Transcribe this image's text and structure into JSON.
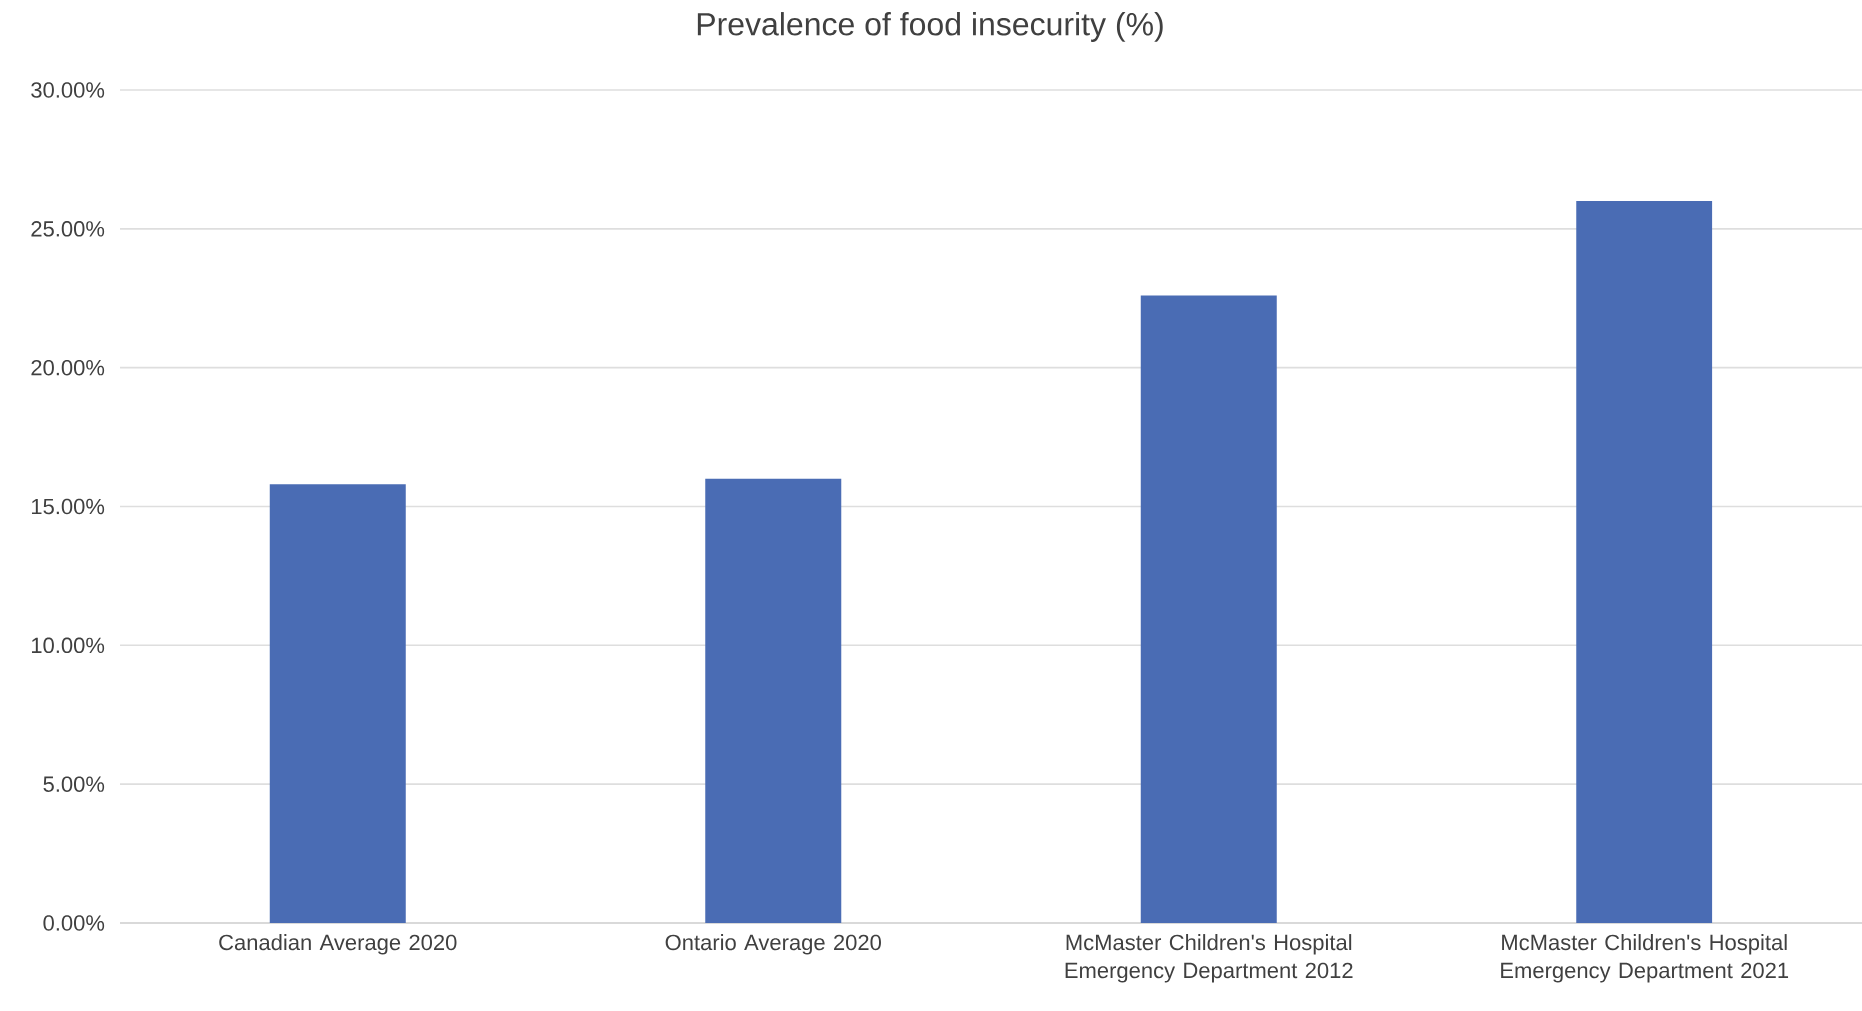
{
  "chart_data": {
    "type": "bar",
    "title": "Prevalence of food insecurity (%)",
    "categories": [
      "Canadian Average 2020",
      "Ontario Average 2020",
      "McMaster Children's Hospital Emergency Department 2012",
      "McMaster Children's Hospital Emergency Department 2021"
    ],
    "values": [
      15.8,
      16.0,
      22.6,
      26.0
    ],
    "color": "#4a6cb4",
    "ylim": [
      0,
      30
    ],
    "yticks": [
      {
        "value": 0,
        "label": "0.00%"
      },
      {
        "value": 5,
        "label": "5.00%"
      },
      {
        "value": 10,
        "label": "10.00%"
      },
      {
        "value": 15,
        "label": "15.00%"
      },
      {
        "value": 20,
        "label": "20.00%"
      },
      {
        "value": 25,
        "label": "25.00%"
      },
      {
        "value": 30,
        "label": "30.00%"
      }
    ],
    "grid": "y"
  }
}
